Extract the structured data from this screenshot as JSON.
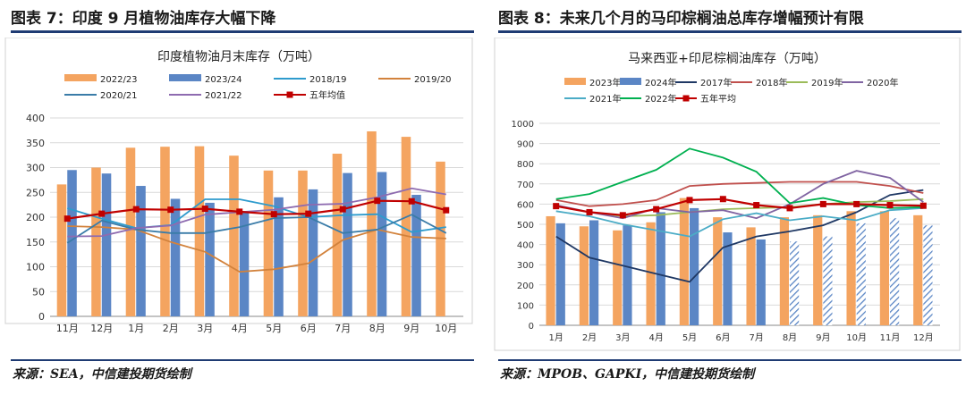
{
  "left_panel": {
    "heading": "图表 7：印度 9 月植物油库存大幅下降",
    "source": "来源：SEA，中信建投期货绘制"
  },
  "right_panel": {
    "heading": "图表 8：未来几个月的马印棕榈油总库存增幅预计有限",
    "source": "来源：MPOB、GAPKI，中信建投期货绘制"
  },
  "chart_data": [
    {
      "type": "bar",
      "title": "印度植物油月末库存（万吨）",
      "categories": [
        "11月",
        "12月",
        "1月",
        "2月",
        "3月",
        "4月",
        "5月",
        "6月",
        "7月",
        "8月",
        "9月",
        "10月"
      ],
      "ylim": [
        0,
        400
      ],
      "yticks": [
        0,
        50,
        100,
        150,
        200,
        250,
        300,
        350,
        400
      ],
      "grid": true,
      "legend_position": "top",
      "bars": [
        {
          "name": "2022/23",
          "color": "#F4A460",
          "values": [
            266,
            300,
            340,
            342,
            343,
            324,
            294,
            294,
            328,
            373,
            362,
            312
          ]
        },
        {
          "name": "2023/24",
          "color": "#5B86C5",
          "values": [
            295,
            288,
            263,
            237,
            229,
            211,
            240,
            256,
            289,
            291,
            245,
            null
          ]
        }
      ],
      "lines": [
        {
          "name": "2018/19",
          "color": "#2E9BCD",
          "values": [
            218,
            197,
            178,
            184,
            236,
            236,
            222,
            200,
            204,
            206,
            170,
            180
          ]
        },
        {
          "name": "2019/20",
          "color": "#D2823C",
          "values": [
            182,
            180,
            175,
            150,
            130,
            90,
            95,
            107,
            154,
            175,
            160,
            157
          ]
        },
        {
          "name": "2020/21",
          "color": "#3A7CA8",
          "values": [
            148,
            193,
            175,
            168,
            168,
            180,
            198,
            200,
            168,
            175,
            205,
            168
          ]
        },
        {
          "name": "2021/22",
          "color": "#8E6BB0",
          "values": [
            161,
            162,
            178,
            183,
            205,
            210,
            215,
            225,
            227,
            240,
            258,
            246
          ]
        },
        {
          "name": "五年均值",
          "color": "#C00000",
          "marker": "square",
          "values": [
            197,
            207,
            216,
            215,
            217,
            211,
            206,
            207,
            216,
            233,
            232,
            214
          ]
        }
      ]
    },
    {
      "type": "bar",
      "title": "马来西亚+印尼棕榈油库存（万吨）",
      "categories": [
        "1月",
        "2月",
        "3月",
        "4月",
        "5月",
        "6月",
        "7月",
        "8月",
        "9月",
        "10月",
        "11月",
        "12月"
      ],
      "ylim": [
        0,
        1000
      ],
      "yticks": [
        0,
        100,
        200,
        300,
        400,
        500,
        600,
        700,
        800,
        900,
        1000
      ],
      "grid": true,
      "legend_position": "top",
      "bars": [
        {
          "name": "2023年",
          "color": "#F4A460",
          "values": [
            540,
            490,
            470,
            510,
            630,
            535,
            485,
            535,
            545,
            565,
            565,
            545
          ]
        },
        {
          "name": "2024年",
          "color": "#5B86C5",
          "hatched_from_index": 7,
          "values": [
            505,
            520,
            495,
            560,
            580,
            460,
            425,
            415,
            440,
            505,
            530,
            495
          ]
        }
      ],
      "lines": [
        {
          "name": "2017年",
          "color": "#1F3864",
          "values": [
            440,
            335,
            295,
            255,
            215,
            385,
            440,
            465,
            495,
            560,
            645,
            670
          ]
        },
        {
          "name": "2018年",
          "color": "#C0504D",
          "values": [
            620,
            590,
            600,
            620,
            690,
            700,
            705,
            710,
            710,
            710,
            690,
            655
          ]
        },
        {
          "name": "2019年",
          "color": "#9BBB59",
          "values": [
            590,
            560,
            540,
            545,
            560,
            575,
            580,
            585,
            600,
            610,
            615,
            625
          ]
        },
        {
          "name": "2020年",
          "color": "#8064A2",
          "values": [
            595,
            560,
            530,
            580,
            560,
            570,
            530,
            600,
            700,
            765,
            730,
            610
          ]
        },
        {
          "name": "2021年",
          "color": "#4BACC6",
          "values": [
            565,
            540,
            500,
            470,
            440,
            525,
            555,
            520,
            540,
            520,
            570,
            580
          ]
        },
        {
          "name": "2022年",
          "color": "#00B050",
          "values": [
            625,
            650,
            710,
            770,
            875,
            830,
            760,
            605,
            630,
            595,
            580,
            585
          ]
        },
        {
          "name": "五年平均",
          "color": "#C00000",
          "marker": "square",
          "values": [
            590,
            560,
            545,
            575,
            620,
            625,
            595,
            580,
            600,
            600,
            595,
            592
          ]
        }
      ]
    }
  ]
}
